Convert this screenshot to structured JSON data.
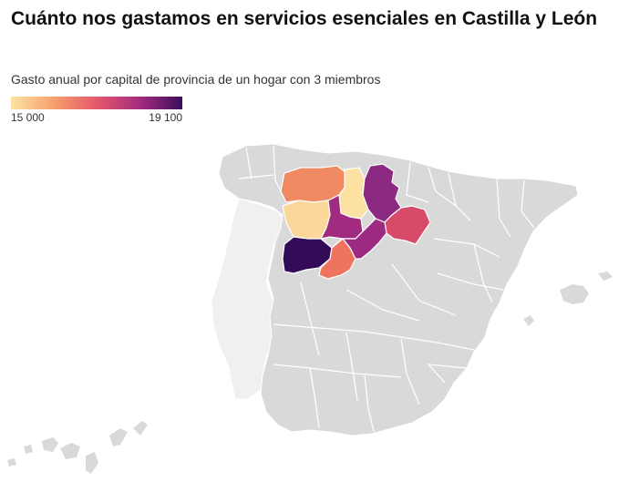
{
  "title": "Cuánto nos gastamos en servicios esenciales en Castilla y León",
  "subtitle": "Gasto anual por capital de provincia de un hogar con 3 miembros",
  "legend": {
    "min_label": "15 000",
    "max_label": "19 100",
    "min_value": 15000,
    "max_value": 19100,
    "colors": [
      "#fde3a4",
      "#f6a06b",
      "#e5586a",
      "#a52c7f",
      "#3b0e5c"
    ]
  },
  "map": {
    "base_colors": {
      "spain": "#d9d9d9",
      "portugal": "#f0f0f0",
      "borders": "#ffffff"
    },
    "provinces": [
      {
        "id": "leon",
        "color": "#f08a62"
      },
      {
        "id": "palencia",
        "color": "#fde1a2"
      },
      {
        "id": "burgos",
        "color": "#8c2a81"
      },
      {
        "id": "zamora",
        "color": "#fcd79a"
      },
      {
        "id": "valladolid",
        "color": "#a02b7f"
      },
      {
        "id": "soria",
        "color": "#d84a6a"
      },
      {
        "id": "salamanca",
        "color": "#320c56"
      },
      {
        "id": "avila",
        "color": "#ee7460"
      },
      {
        "id": "segovia",
        "color": "#9c2a80"
      }
    ]
  }
}
